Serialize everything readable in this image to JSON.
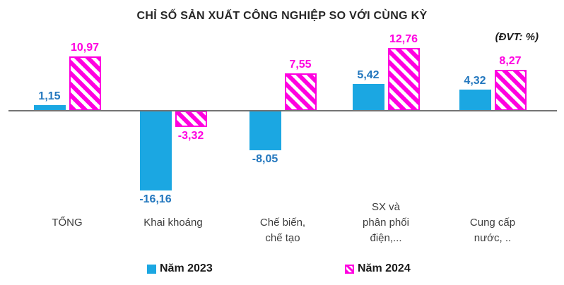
{
  "chart": {
    "title": "CHỈ SỐ SẢN XUẤT CÔNG NGHIỆP SO VỚI CÙNG KỲ",
    "unit_note": "(ĐVT: %)"
  },
  "chart_data": {
    "type": "bar",
    "title": "CHỈ SỐ SẢN XUẤT CÔNG NGHIỆP SO VỚI CÙNG KỲ",
    "unit": "(ĐVT: %)",
    "categories": [
      "TỔNG",
      "Khai khoáng",
      "Chế biến,\nchế tạo",
      "SX và\nphân phối\nđiện,...",
      "Cung cấp\nnước, .."
    ],
    "series": [
      {
        "name": "Năm 2023",
        "values": [
          1.15,
          -16.16,
          -8.05,
          5.42,
          4.32
        ],
        "labels": [
          "1,15",
          "-16,16",
          "-8,05",
          "5,42",
          "4,32"
        ],
        "color": "#1BA7E2",
        "label_color": "#2377BE",
        "pattern": "solid"
      },
      {
        "name": "Năm 2024",
        "values": [
          10.97,
          -3.32,
          7.55,
          12.76,
          8.27
        ],
        "labels": [
          "10,97",
          "-3,32",
          "7,55",
          "12,76",
          "8,27"
        ],
        "color": "#FF00E0",
        "label_color": "#FF00E0",
        "pattern": "diagonal-hatch"
      }
    ],
    "legend_position": "bottom",
    "grid": false,
    "y_axis_visible": false,
    "ylim": [
      -17,
      13
    ]
  }
}
